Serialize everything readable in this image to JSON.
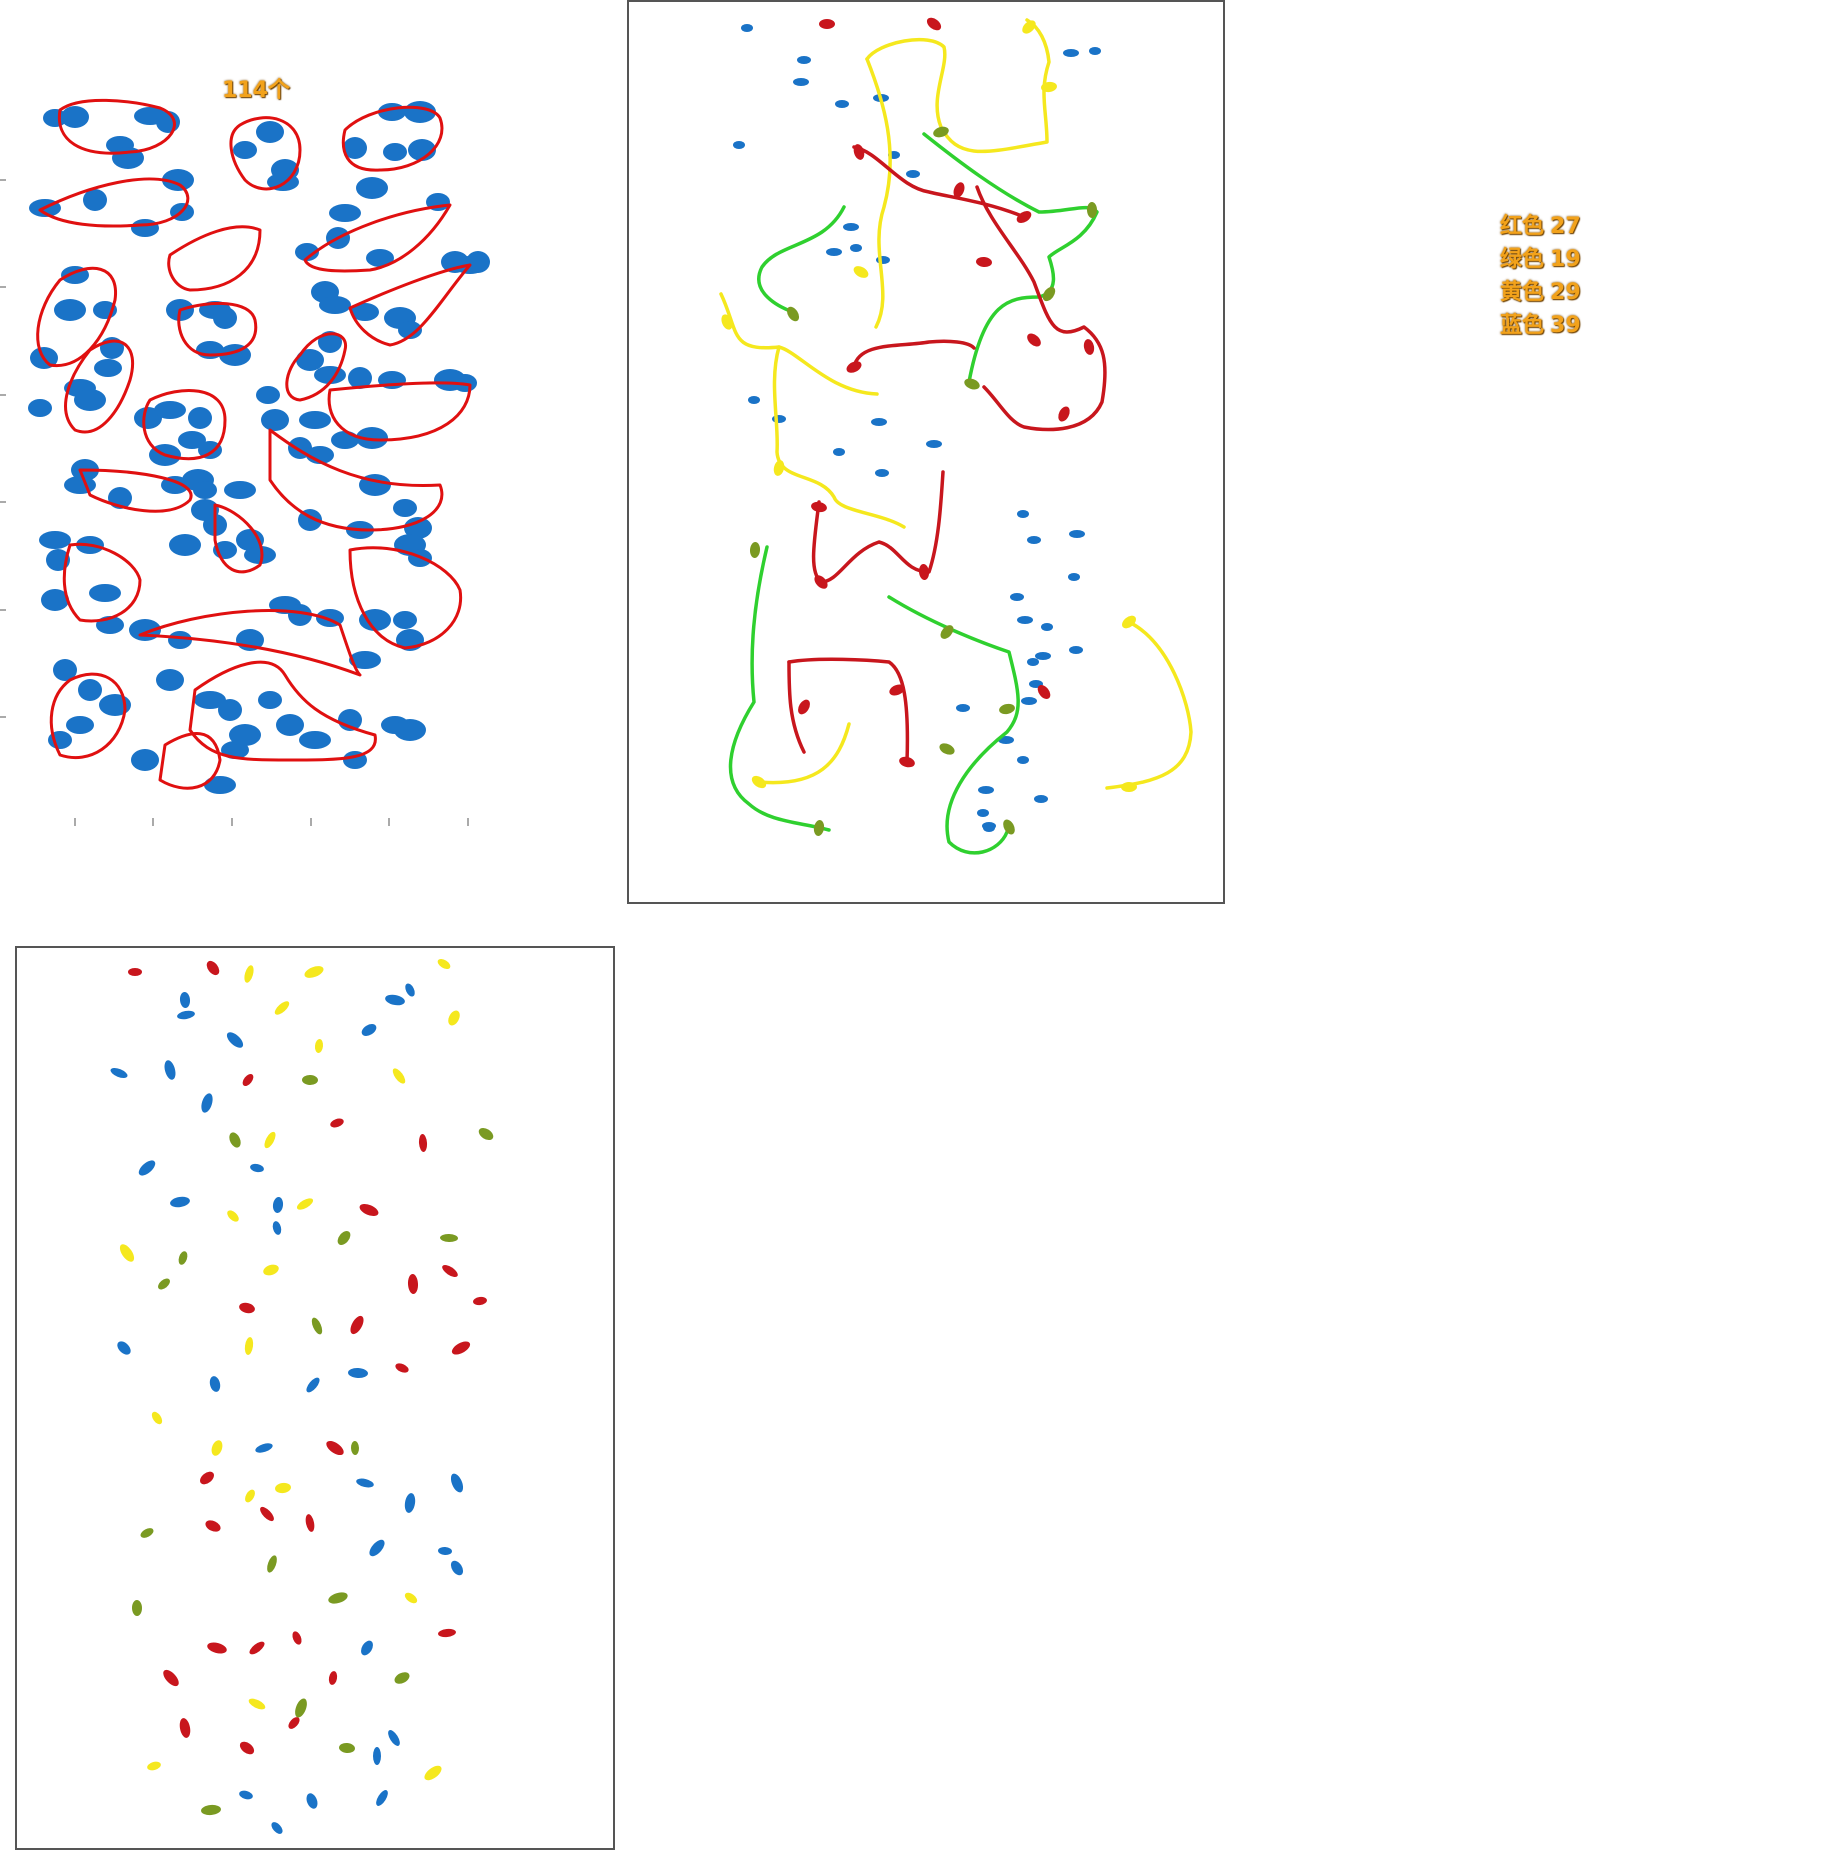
{
  "total_label": "114个",
  "legend": [
    {
      "label": "红色",
      "count": "27",
      "color": "#d01010"
    },
    {
      "label": "绿色",
      "count": "19",
      "color": "#22cc22"
    },
    {
      "label": "黄色",
      "count": "29",
      "color": "#f2e600"
    },
    {
      "label": "蓝色",
      "count": "39",
      "color": "#1f5fbf"
    }
  ],
  "colors": {
    "blob_blue": "#1a73c7",
    "loop_red": "#e01010",
    "route_red": "#c8161d",
    "route_green": "#2fd02f",
    "route_yellow": "#f5e81e",
    "hold_olive": "#7a9a22",
    "frame": "#555555",
    "label_orange": "#f2a21b"
  }
}
